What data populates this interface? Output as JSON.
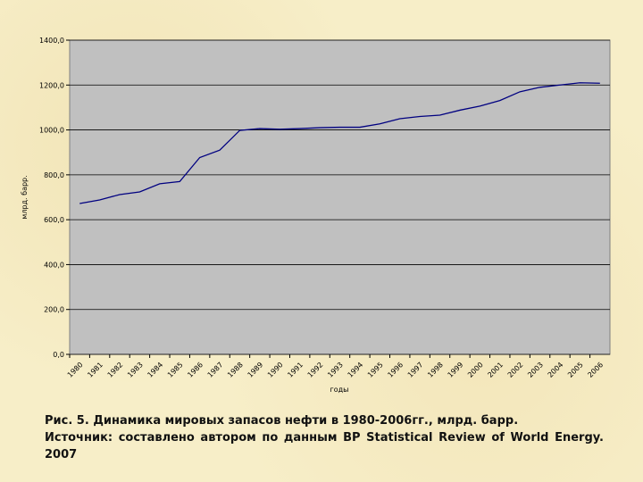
{
  "chart_data": {
    "type": "line",
    "y_label": "млрд. барр.",
    "x_label": "годы",
    "categories": [
      "1980",
      "1981",
      "1982",
      "1983",
      "1984",
      "1985",
      "1986",
      "1987",
      "1988",
      "1989",
      "1990",
      "1991",
      "1992",
      "1993",
      "1994",
      "1995",
      "1996",
      "1997",
      "1998",
      "1999",
      "2000",
      "2001",
      "2002",
      "2003",
      "2004",
      "2005",
      "2006"
    ],
    "values": [
      672,
      688,
      712,
      724,
      760,
      770,
      877,
      910,
      998,
      1006,
      1003,
      1006,
      1010,
      1012,
      1012,
      1027,
      1050,
      1060,
      1066,
      1088,
      1106,
      1131,
      1170,
      1190,
      1200,
      1210,
      1208
    ],
    "color": "#000080",
    "plot_background": "#c0c0c0",
    "grid": true,
    "ylim": [
      0,
      1400
    ],
    "yticks": [
      {
        "value": 0,
        "label": "0,0"
      },
      {
        "value": 200,
        "label": "200,0"
      },
      {
        "value": 400,
        "label": "400,0"
      },
      {
        "value": 600,
        "label": "600,0"
      },
      {
        "value": 800,
        "label": "800,0"
      },
      {
        "value": 1000,
        "label": "1000,0"
      },
      {
        "value": 1200,
        "label": "1200,0"
      },
      {
        "value": 1400,
        "label": "1400,0"
      }
    ],
    "caption": [
      "Рис. 5. Динамика мировых запасов нефти в 1980-2006гг., млрд. барр.",
      "Источник: составлено автором по данным BP Statistical Review of World Energy. 2007"
    ]
  }
}
